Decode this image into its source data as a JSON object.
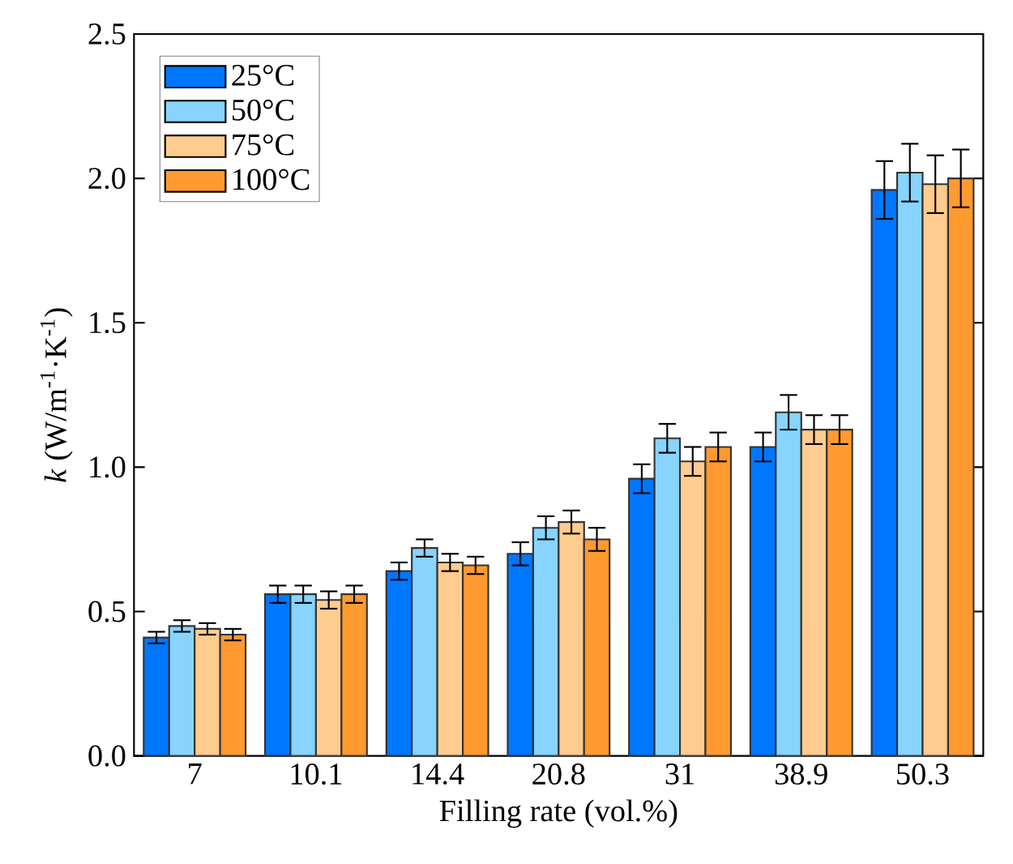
{
  "chart_data": {
    "type": "bar",
    "xlabel": "Filling rate (vol.%)",
    "ylabel": "*k* (W/m$^{-1}$·K$^{-1}$)",
    "categories": [
      "7",
      "10.1",
      "14.4",
      "20.8",
      "31",
      "38.9",
      "50.3"
    ],
    "series": [
      {
        "name": "25°C",
        "color": "#0077ff",
        "values": [
          0.41,
          0.56,
          0.64,
          0.7,
          0.96,
          1.07,
          1.96
        ],
        "errors": [
          0.02,
          0.03,
          0.03,
          0.04,
          0.05,
          0.05,
          0.1
        ]
      },
      {
        "name": "50°C",
        "color": "#88d4ff",
        "values": [
          0.45,
          0.56,
          0.72,
          0.79,
          1.1,
          1.19,
          2.02
        ],
        "errors": [
          0.02,
          0.03,
          0.03,
          0.04,
          0.05,
          0.06,
          0.1
        ]
      },
      {
        "name": "75°C",
        "color": "#ffcc90",
        "values": [
          0.44,
          0.54,
          0.67,
          0.81,
          1.02,
          1.13,
          1.98
        ],
        "errors": [
          0.02,
          0.03,
          0.03,
          0.04,
          0.05,
          0.05,
          0.1
        ]
      },
      {
        "name": "100°C",
        "color": "#ff9a30",
        "values": [
          0.42,
          0.56,
          0.66,
          0.75,
          1.07,
          1.13,
          2.0
        ],
        "errors": [
          0.02,
          0.03,
          0.03,
          0.04,
          0.05,
          0.05,
          0.1
        ]
      }
    ],
    "ylim": [
      0,
      2.5
    ],
    "yticks": [
      {
        "value": 0,
        "label": "0.0"
      },
      {
        "value": 0.5,
        "label": "0.5"
      },
      {
        "value": 1,
        "label": "1.0"
      },
      {
        "value": 1.5,
        "label": "1.5"
      },
      {
        "value": 2,
        "label": "2.0"
      },
      {
        "value": 2.5,
        "label": "2.5"
      }
    ],
    "legend": "top left"
  }
}
